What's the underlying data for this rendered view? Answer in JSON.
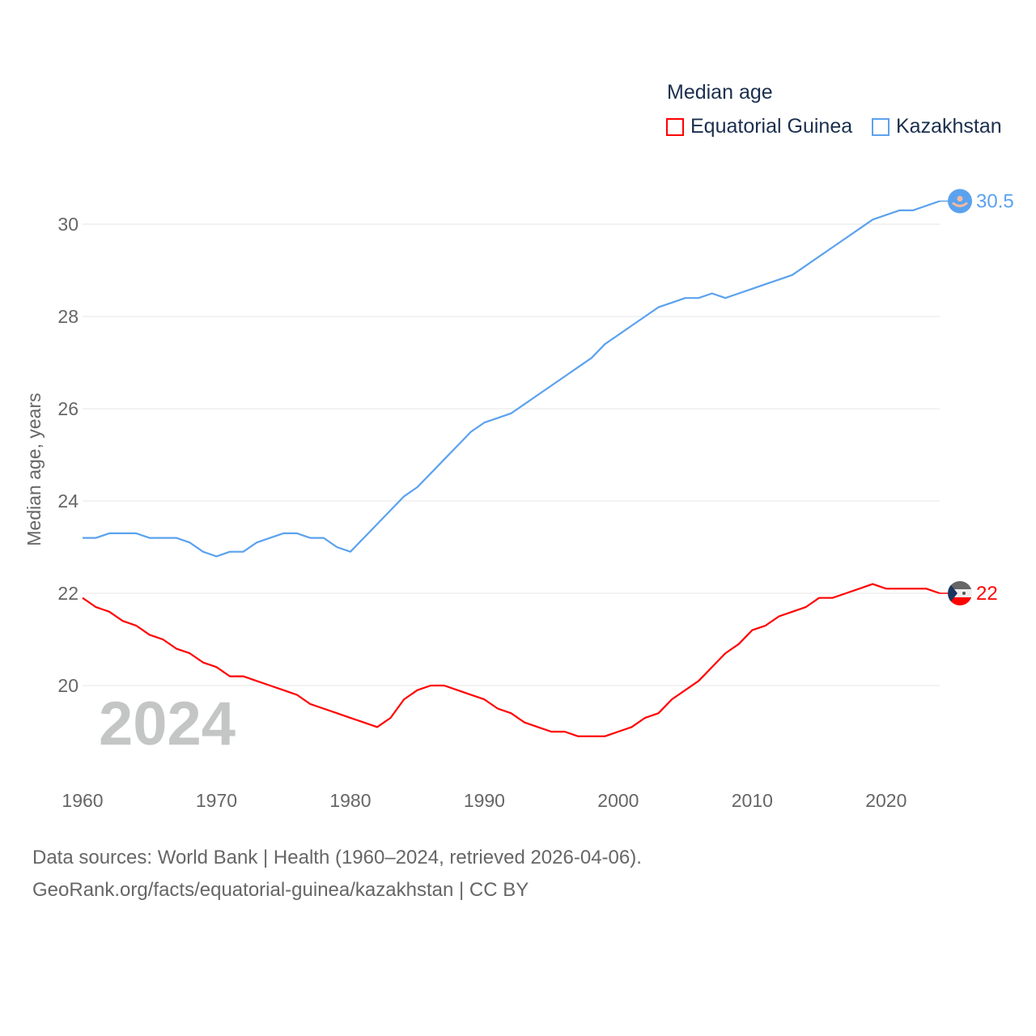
{
  "chart_data": {
    "type": "line",
    "title": "Median age",
    "xlabel": "",
    "ylabel": "Median age, years",
    "xlim": [
      1960,
      2024
    ],
    "ylim": [
      18.2,
      30.9
    ],
    "x_ticks": [
      "1960",
      "1970",
      "1980",
      "1990",
      "2000",
      "2010",
      "2020"
    ],
    "y_ticks": [
      "20",
      "22",
      "24",
      "26",
      "28",
      "30"
    ],
    "grid": true,
    "legend_placement": "top-right",
    "year_watermark": "2024",
    "x": [
      1960,
      1961,
      1962,
      1963,
      1964,
      1965,
      1966,
      1967,
      1968,
      1969,
      1970,
      1971,
      1972,
      1973,
      1974,
      1975,
      1976,
      1977,
      1978,
      1979,
      1980,
      1981,
      1982,
      1983,
      1984,
      1985,
      1986,
      1987,
      1988,
      1989,
      1990,
      1991,
      1992,
      1993,
      1994,
      1995,
      1996,
      1997,
      1998,
      1999,
      2000,
      2001,
      2002,
      2003,
      2004,
      2005,
      2006,
      2007,
      2008,
      2009,
      2010,
      2011,
      2012,
      2013,
      2014,
      2015,
      2016,
      2017,
      2018,
      2019,
      2020,
      2021,
      2022,
      2023,
      2024
    ],
    "series": [
      {
        "name": "Equatorial Guinea",
        "color": "#ff0000",
        "end_label": "22",
        "values": [
          21.9,
          21.7,
          21.6,
          21.4,
          21.3,
          21.1,
          21.0,
          20.8,
          20.7,
          20.5,
          20.4,
          20.2,
          20.2,
          20.1,
          20.0,
          19.9,
          19.8,
          19.6,
          19.5,
          19.4,
          19.3,
          19.2,
          19.1,
          19.3,
          19.7,
          19.9,
          20.0,
          20.0,
          19.9,
          19.8,
          19.7,
          19.5,
          19.4,
          19.2,
          19.1,
          19.0,
          19.0,
          18.9,
          18.9,
          18.9,
          19.0,
          19.1,
          19.3,
          19.4,
          19.7,
          19.9,
          20.1,
          20.4,
          20.7,
          20.9,
          21.2,
          21.3,
          21.5,
          21.6,
          21.7,
          21.9,
          21.9,
          22.0,
          22.1,
          22.2,
          22.1,
          22.1,
          22.1,
          22.1,
          22.0
        ]
      },
      {
        "name": "Kazakhstan",
        "color": "#5ba2ee",
        "end_label": "30.5",
        "values": [
          23.2,
          23.2,
          23.3,
          23.3,
          23.3,
          23.2,
          23.2,
          23.2,
          23.1,
          22.9,
          22.8,
          22.9,
          22.9,
          23.1,
          23.2,
          23.3,
          23.3,
          23.2,
          23.2,
          23.0,
          22.9,
          23.2,
          23.5,
          23.8,
          24.1,
          24.3,
          24.6,
          24.9,
          25.2,
          25.5,
          25.7,
          25.8,
          25.9,
          26.1,
          26.3,
          26.5,
          26.7,
          26.9,
          27.1,
          27.4,
          27.6,
          27.8,
          28.0,
          28.2,
          28.3,
          28.4,
          28.4,
          28.5,
          28.4,
          28.5,
          28.6,
          28.7,
          28.8,
          28.9,
          29.1,
          29.3,
          29.5,
          29.7,
          29.9,
          30.1,
          30.2,
          30.3,
          30.3,
          30.4,
          30.5
        ]
      }
    ]
  },
  "footer": {
    "line1": "Data sources: World Bank | Health (1960–2024, retrieved 2026-04-06).",
    "line2": "GeoRank.org/facts/equatorial-guinea/kazakhstan | CC BY"
  }
}
